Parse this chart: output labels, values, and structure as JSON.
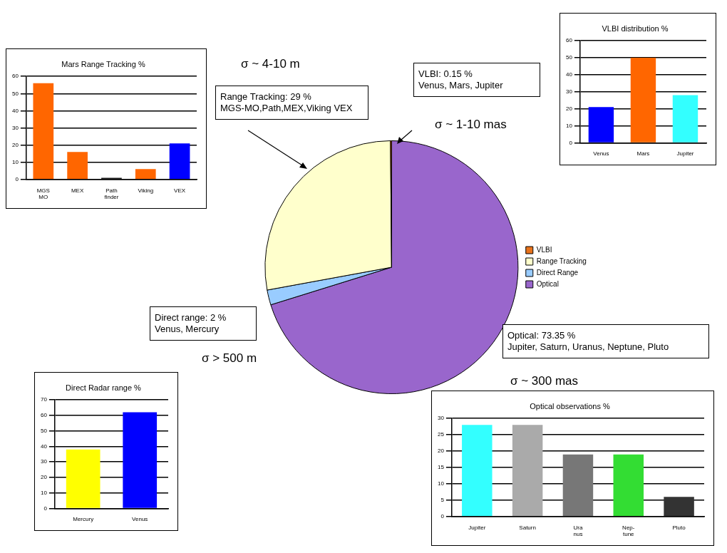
{
  "chart_data": [
    {
      "type": "bar",
      "title": "Mars Range Tracking %",
      "categories": [
        "MGS\nMO",
        "MEX",
        "Path\nfinder",
        "Viking",
        "VEX"
      ],
      "values": [
        56,
        16,
        1,
        6,
        21
      ],
      "colors": [
        "#ff6600",
        "#ff6600",
        "#222222",
        "#ff6600",
        "#0000ff"
      ],
      "ylim": [
        0,
        60
      ],
      "yticks": [
        0,
        10,
        20,
        30,
        40,
        50,
        60
      ],
      "grid": "y",
      "legend": false
    },
    {
      "type": "bar",
      "title": "VLBI distribution %",
      "categories": [
        "Venus",
        "Mars",
        "Jupiter"
      ],
      "values": [
        21,
        50,
        28
      ],
      "colors": [
        "#0000ff",
        "#ff6600",
        "#33ffff"
      ],
      "ylim": [
        0,
        60
      ],
      "yticks": [
        0,
        10,
        20,
        30,
        40,
        50,
        60
      ],
      "grid": "y",
      "legend": false
    },
    {
      "type": "pie",
      "categories": [
        "VLBI",
        "Range Tracking",
        "Direct Range",
        "Optical"
      ],
      "values": [
        0.14,
        27.75,
        1.91,
        70.2
      ],
      "colors": [
        "#e8731c",
        "#ffffcc",
        "#99ccff",
        "#9966cc"
      ],
      "legend": "right",
      "annotations": [
        "σ ~ 4-10 m",
        "Range Tracking: 29 %\nMGS-MO,Path,MEX,Viking VEX",
        "VLBI: 0.15 %\nVenus, Mars, Jupiter",
        "σ ~ 1-10 mas",
        "Direct range: 2 %\nVenus, Mercury",
        "σ > 500 m",
        "Optical: 73.35 %\nJupiter, Saturn, Uranus, Neptune, Pluto",
        "σ ~ 300 mas"
      ]
    },
    {
      "type": "bar",
      "title": "Direct Radar range %",
      "categories": [
        "Mercury",
        "Venus"
      ],
      "values": [
        38,
        62
      ],
      "colors": [
        "#ffff00",
        "#0000ff"
      ],
      "ylim": [
        0,
        70
      ],
      "yticks": [
        0,
        10,
        20,
        30,
        40,
        50,
        60,
        70
      ],
      "grid": "y",
      "legend": false
    },
    {
      "type": "bar",
      "title": "Optical observations %",
      "categories": [
        "Jupiter",
        "Saturn",
        "Ura\nnus",
        "Nep-\ntune",
        "Pluto"
      ],
      "values": [
        28,
        28,
        19,
        19,
        6
      ],
      "colors": [
        "#33ffff",
        "#aaaaaa",
        "#777777",
        "#33dd33",
        "#333333"
      ],
      "ylim": [
        0,
        30
      ],
      "yticks": [
        0,
        5,
        10,
        15,
        20,
        25,
        30
      ],
      "grid": "y",
      "legend": false
    }
  ]
}
